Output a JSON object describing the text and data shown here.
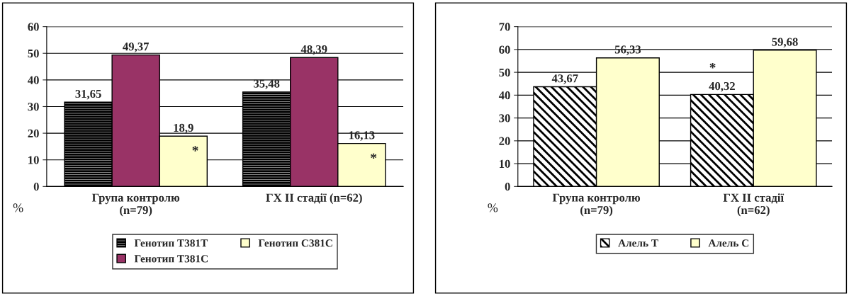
{
  "chart_data": [
    {
      "type": "bar",
      "categories": [
        "Група контролю (n=79)",
        "ГХ II стадії (n=62)"
      ],
      "ylabel": "%",
      "ylim": [
        0,
        60
      ],
      "yticks": [
        0,
        10,
        20,
        30,
        40,
        50,
        60
      ],
      "grid": "y",
      "legend": "bottom",
      "series": [
        {
          "name": "Генотип Т381Т",
          "color": "#000000",
          "values": [
            31.65,
            35.48
          ],
          "value_labels": [
            "31,65",
            "35,48"
          ]
        },
        {
          "name": "Генотип Т381С",
          "color": "#993366",
          "values": [
            49.37,
            48.39
          ],
          "value_labels": [
            "49,37",
            "48,39"
          ]
        },
        {
          "name": "Генотип С381С",
          "color": "#ffffcc",
          "values": [
            18.9,
            16.13
          ],
          "value_labels": [
            "18,9",
            "16,13"
          ]
        }
      ],
      "annotations": [
        "*",
        "*"
      ]
    },
    {
      "type": "bar",
      "categories": [
        "Група контролю (n=79)",
        "ГХ II стадії (n=62)"
      ],
      "ylabel": "%",
      "ylim": [
        0,
        70
      ],
      "yticks": [
        0,
        10,
        20,
        30,
        40,
        50,
        60,
        70
      ],
      "grid": "y",
      "legend": "bottom",
      "series": [
        {
          "name": "Алель Т",
          "color": "#000000",
          "values": [
            43.67,
            40.32
          ],
          "value_labels": [
            "43,67",
            "40,32"
          ]
        },
        {
          "name": "Алель С",
          "color": "#ffffcc",
          "values": [
            56.33,
            59.68
          ],
          "value_labels": [
            "56,33",
            "59,68"
          ]
        }
      ],
      "annotations": [
        "*"
      ]
    }
  ]
}
